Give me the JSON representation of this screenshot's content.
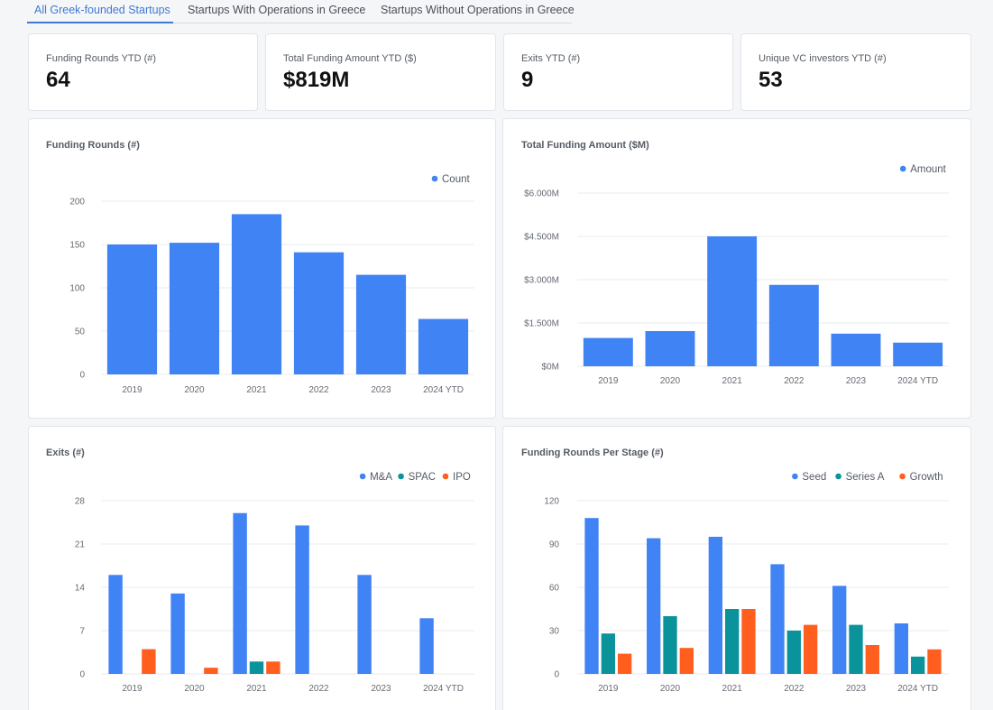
{
  "tabs": [
    {
      "label": "All Greek-founded Startups",
      "active": true
    },
    {
      "label": "Startups With Operations in Greece",
      "active": false
    },
    {
      "label": "Startups Without Operations in Greece",
      "active": false
    }
  ],
  "kpis": [
    {
      "label": "Funding Rounds YTD (#)",
      "value": "64"
    },
    {
      "label": "Total Funding Amount YTD ($)",
      "value": "$819M"
    },
    {
      "label": "Exits YTD (#)",
      "value": "9"
    },
    {
      "label": "Unique VC investors YTD (#)",
      "value": "53"
    }
  ],
  "colors": {
    "blue": "#4083f5",
    "teal": "#0b939b",
    "orange": "#ff5e1f"
  },
  "chart_data": [
    {
      "id": "funding-rounds",
      "type": "bar",
      "title": "Funding Rounds (#)",
      "categories": [
        "2019",
        "2020",
        "2021",
        "2022",
        "2023",
        "2024 YTD"
      ],
      "series": [
        {
          "name": "Count",
          "color": "#4083f5",
          "values": [
            150,
            152,
            185,
            141,
            115,
            64
          ]
        }
      ],
      "ylim": [
        0,
        200
      ],
      "yticks": [
        0,
        50,
        100,
        150,
        200
      ],
      "ytick_labels": [
        "0",
        "50",
        "100",
        "150",
        "200"
      ],
      "legend": "top-right",
      "grid": true
    },
    {
      "id": "funding-amount",
      "type": "bar",
      "title": "Total Funding Amount ($M)",
      "categories": [
        "2019",
        "2020",
        "2021",
        "2022",
        "2023",
        "2024 YTD"
      ],
      "series": [
        {
          "name": "Amount",
          "color": "#4083f5",
          "values": [
            980,
            1220,
            4500,
            2820,
            1130,
            819
          ]
        }
      ],
      "ylim": [
        0,
        6000
      ],
      "yticks": [
        0,
        1500,
        3000,
        4500,
        6000
      ],
      "ytick_labels": [
        "$0M",
        "$1.500M",
        "$3.000M",
        "$4.500M",
        "$6.000M"
      ],
      "legend": "top-right",
      "grid": true
    },
    {
      "id": "exits",
      "type": "bar",
      "title": "Exits (#)",
      "categories": [
        "2019",
        "2020",
        "2021",
        "2022",
        "2023",
        "2024 YTD"
      ],
      "series": [
        {
          "name": "M&A",
          "color": "#4083f5",
          "values": [
            16,
            13,
            26,
            24,
            16,
            9
          ]
        },
        {
          "name": "SPAC",
          "color": "#0b939b",
          "values": [
            0,
            0,
            2,
            0,
            0,
            0
          ]
        },
        {
          "name": "IPO",
          "color": "#ff5e1f",
          "values": [
            4,
            1,
            2,
            0,
            0,
            0
          ]
        }
      ],
      "ylim": [
        0,
        28
      ],
      "yticks": [
        0,
        7,
        14,
        21,
        28
      ],
      "ytick_labels": [
        "0",
        "7",
        "14",
        "21",
        "28"
      ],
      "legend": "top-right",
      "grid": true
    },
    {
      "id": "rounds-per-stage",
      "type": "bar",
      "title": "Funding Rounds Per Stage (#)",
      "categories": [
        "2019",
        "2020",
        "2021",
        "2022",
        "2023",
        "2024 YTD"
      ],
      "series": [
        {
          "name": "Seed",
          "color": "#4083f5",
          "values": [
            108,
            94,
            95,
            76,
            61,
            35
          ]
        },
        {
          "name": "Series A",
          "color": "#0b939b",
          "values": [
            28,
            40,
            45,
            30,
            34,
            12
          ]
        },
        {
          "name": "Growth",
          "color": "#ff5e1f",
          "values": [
            14,
            18,
            45,
            34,
            20,
            17
          ]
        }
      ],
      "ylim": [
        0,
        120
      ],
      "yticks": [
        0,
        30,
        60,
        90,
        120
      ],
      "ytick_labels": [
        "0",
        "30",
        "60",
        "90",
        "120"
      ],
      "legend": "top-right",
      "grid": true
    }
  ]
}
